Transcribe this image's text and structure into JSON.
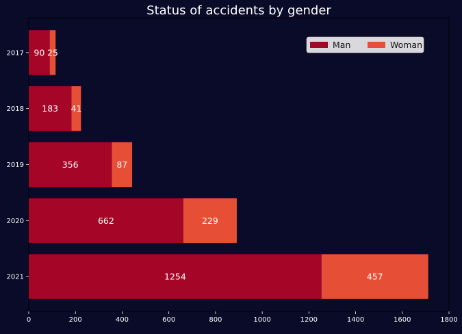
{
  "chart_data": {
    "type": "bar",
    "orientation": "horizontal",
    "stacked": true,
    "title": "Status of accidents by gender",
    "xlabel": "",
    "ylabel": "",
    "categories": [
      "2017",
      "2018",
      "2019",
      "2020",
      "2021"
    ],
    "series": [
      {
        "name": "Man",
        "color": "#a50526",
        "values": [
          90,
          183,
          356,
          662,
          1254
        ]
      },
      {
        "name": "Woman",
        "color": "#e64e36",
        "values": [
          25,
          41,
          87,
          229,
          457
        ]
      }
    ],
    "xlim": [
      0,
      1800
    ],
    "xticks": [
      0,
      200,
      400,
      600,
      800,
      1000,
      1200,
      1400,
      1600,
      1800
    ],
    "grid": false,
    "legend": {
      "placement": "top-right",
      "columns": 2
    },
    "colors": {
      "background": "#0a0a29",
      "text": "#ffffff",
      "legend_bg": "#d9d9dd"
    }
  }
}
